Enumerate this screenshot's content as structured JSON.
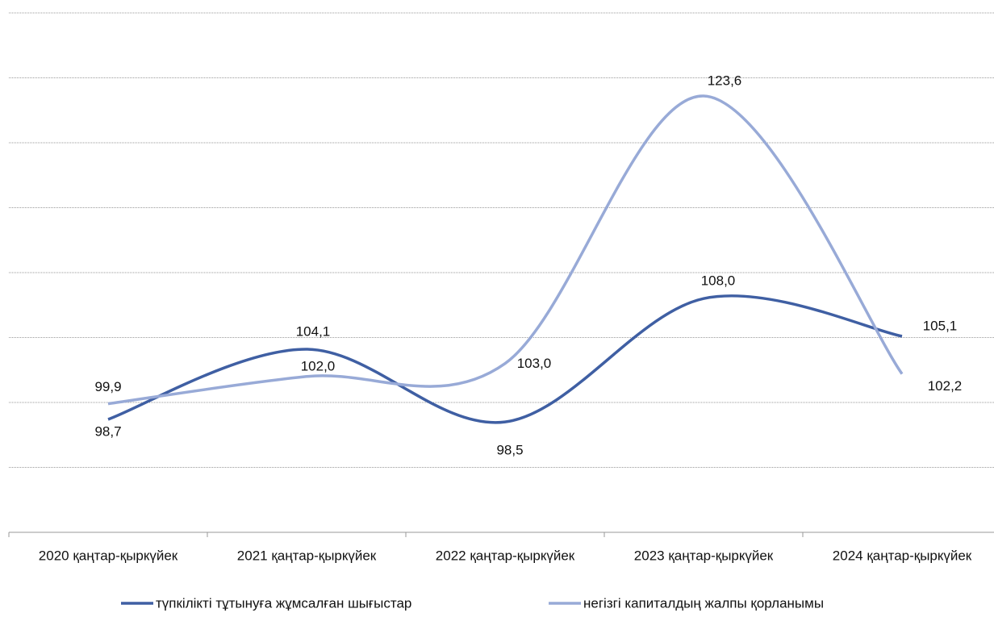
{
  "chart_data": {
    "type": "line",
    "categories": [
      "2020 қаңтар-қыркүйек",
      "2021 қаңтар-қыркүйек",
      "2022 қаңтар-қыркүйек",
      "2023 қаңтар-қыркүйек",
      "2024 қаңтар-қыркүйек"
    ],
    "series": [
      {
        "name": "түпкілікті тұтынуға жұмсалған шығыстар",
        "color": "#3f5fa3",
        "values": [
          98.7,
          104.1,
          98.5,
          108.0,
          105.1
        ],
        "value_labels": [
          "98,7",
          "104,1",
          "98,5",
          "108,0",
          "105,1"
        ]
      },
      {
        "name": "негізгі капиталдың жалпы қорланымы",
        "color": "#98aad7",
        "values": [
          99.9,
          102.0,
          103.0,
          123.6,
          102.2
        ],
        "value_labels": [
          "99,9",
          "102,0",
          "103,0",
          "123,6",
          "102,2"
        ]
      }
    ],
    "ylim": [
      90,
      130
    ],
    "yticks": [
      95,
      100,
      105,
      110,
      115,
      120,
      125,
      130
    ],
    "grid": true,
    "smooth": true,
    "legend": "bottom"
  }
}
